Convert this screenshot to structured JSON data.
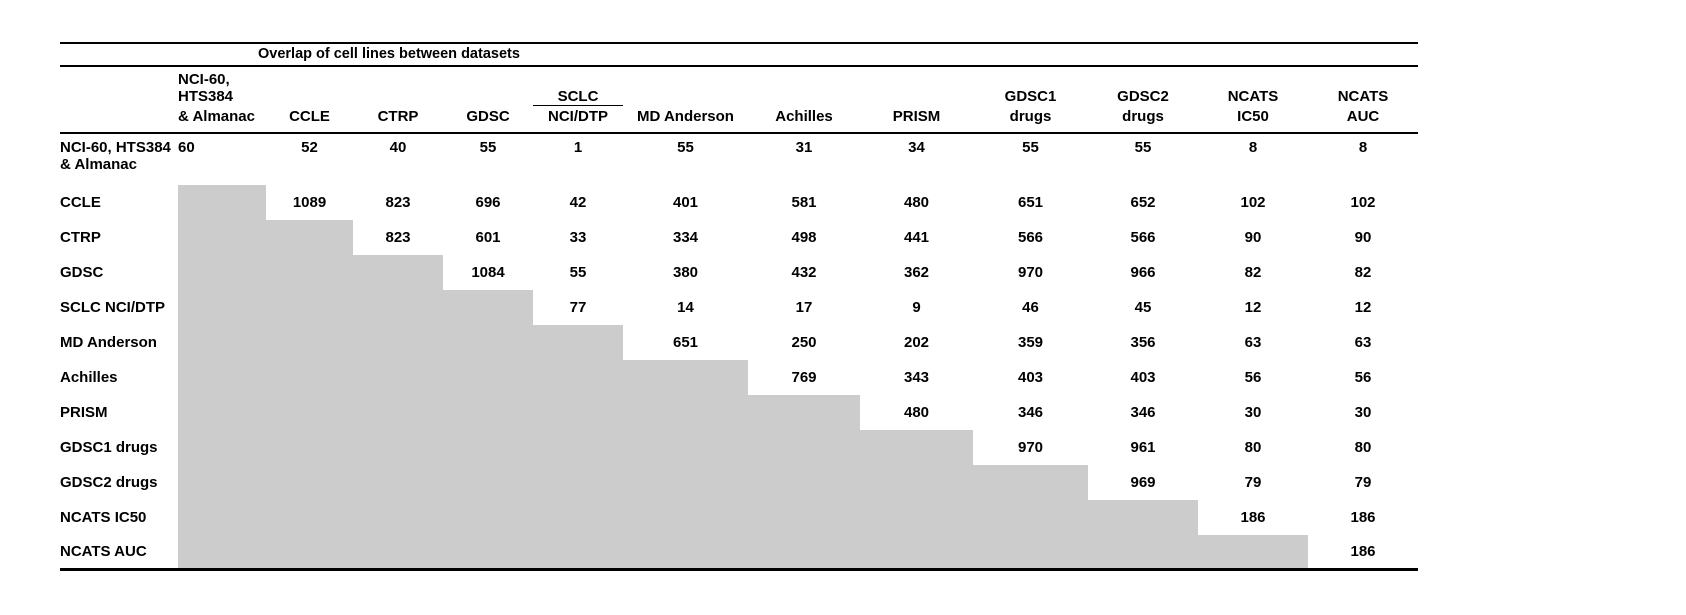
{
  "title": "Overlap of cell lines between datasets",
  "colors": {
    "gray_cell": "#cccccc",
    "rule": "#000000"
  },
  "chart_data": {
    "type": "table",
    "title": "Overlap of cell lines between datasets",
    "note": "Upper-triangular overlap matrix; shaded lower-triangle cells are empty"
  },
  "columns": [
    {
      "line1": "NCI-60, HTS384",
      "line2": "& Almanac"
    },
    {
      "line1": "",
      "line2": "CCLE"
    },
    {
      "line1": "",
      "line2": "CTRP"
    },
    {
      "line1": "",
      "line2": "GDSC"
    },
    {
      "line1": "SCLC",
      "line2": "NCI/DTP",
      "spanner": true
    },
    {
      "line1": "",
      "line2": "MD Anderson"
    },
    {
      "line1": "",
      "line2": "Achilles"
    },
    {
      "line1": "",
      "line2": "PRISM"
    },
    {
      "line1": "GDSC1",
      "line2": "drugs"
    },
    {
      "line1": "GDSC2",
      "line2": "drugs"
    },
    {
      "line1": "NCATS",
      "line2": "IC50"
    },
    {
      "line1": "NCATS",
      "line2": "AUC"
    }
  ],
  "rows": [
    {
      "label": "NCI-60, HTS384 & Almanac",
      "values": [
        "60",
        "52",
        "40",
        "55",
        "1",
        "55",
        "31",
        "34",
        "55",
        "55",
        "8",
        "8"
      ]
    },
    {
      "label": "CCLE",
      "values": [
        null,
        "1089",
        "823",
        "696",
        "42",
        "401",
        "581",
        "480",
        "651",
        "652",
        "102",
        "102"
      ]
    },
    {
      "label": "CTRP",
      "values": [
        null,
        null,
        "823",
        "601",
        "33",
        "334",
        "498",
        "441",
        "566",
        "566",
        "90",
        "90"
      ]
    },
    {
      "label": "GDSC",
      "values": [
        null,
        null,
        null,
        "1084",
        "55",
        "380",
        "432",
        "362",
        "970",
        "966",
        "82",
        "82"
      ]
    },
    {
      "label": "SCLC NCI/DTP",
      "values": [
        null,
        null,
        null,
        null,
        "77",
        "14",
        "17",
        "9",
        "46",
        "45",
        "12",
        "12"
      ]
    },
    {
      "label": "MD Anderson",
      "values": [
        null,
        null,
        null,
        null,
        null,
        "651",
        "250",
        "202",
        "359",
        "356",
        "63",
        "63"
      ]
    },
    {
      "label": "Achilles",
      "values": [
        null,
        null,
        null,
        null,
        null,
        null,
        "769",
        "343",
        "403",
        "403",
        "56",
        "56"
      ]
    },
    {
      "label": "PRISM",
      "values": [
        null,
        null,
        null,
        null,
        null,
        null,
        null,
        "480",
        "346",
        "346",
        "30",
        "30"
      ]
    },
    {
      "label": "GDSC1 drugs",
      "values": [
        null,
        null,
        null,
        null,
        null,
        null,
        null,
        null,
        "970",
        "961",
        "80",
        "80"
      ]
    },
    {
      "label": "GDSC2 drugs",
      "values": [
        null,
        null,
        null,
        null,
        null,
        null,
        null,
        null,
        null,
        "969",
        "79",
        "79"
      ]
    },
    {
      "label": "NCATS IC50",
      "values": [
        null,
        null,
        null,
        null,
        null,
        null,
        null,
        null,
        null,
        null,
        "186",
        "186"
      ]
    },
    {
      "label": "NCATS AUC",
      "values": [
        null,
        null,
        null,
        null,
        null,
        null,
        null,
        null,
        null,
        null,
        null,
        "186"
      ]
    }
  ]
}
